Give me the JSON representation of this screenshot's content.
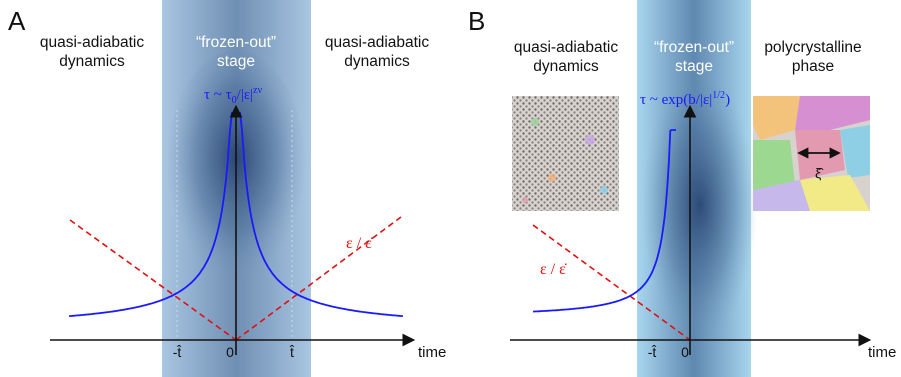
{
  "panel_a": {
    "letter": "A",
    "left_regime": [
      "quasi-adiabatic",
      "dynamics"
    ],
    "center_regime": [
      "“frozen-out”",
      "stage"
    ],
    "right_regime": [
      "quasi-adiabatic",
      "dynamics"
    ],
    "tau_formula": "τ ~ τ₀/|ε|^{zν}",
    "tau_formula_main": "τ ~ τ",
    "tau_formula_sub": "0",
    "tau_formula_rest": "/|ε|",
    "tau_formula_sup": "zν",
    "epsilon_label": "ε / ε̇",
    "tick_neg": "-t̂",
    "tick_zero": "0",
    "tick_pos": "t̂",
    "x_axis": "time"
  },
  "panel_b": {
    "letter": "B",
    "left_regime": [
      "quasi-adiabatic",
      "dynamics"
    ],
    "center_regime": [
      "“frozen-out”",
      "stage"
    ],
    "right_regime": [
      "polycrystalline",
      "phase"
    ],
    "tau_formula_main": "τ ~ exp(b/|ε|",
    "tau_formula_sup": "1/2",
    "tau_formula_close": ")",
    "epsilon_label": "ε / ε̇",
    "xi_label": "ξ̂",
    "tick_neg": "-t̂",
    "tick_zero": "0",
    "x_axis": "time"
  },
  "colors": {
    "tau_curve": "#1a1aff",
    "epsilon_line": "#e01010",
    "frozen_band": "#8fb3d6",
    "axis": "#111111"
  }
}
